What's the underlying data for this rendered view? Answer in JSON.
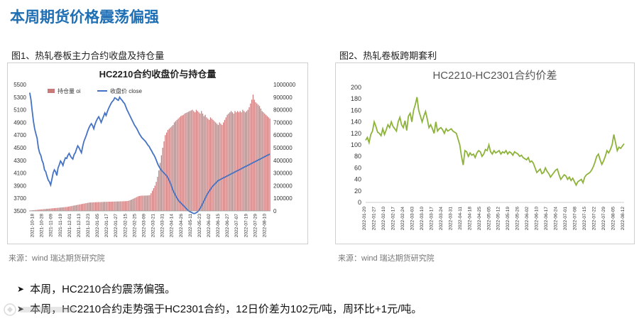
{
  "page": {
    "title": "本周期货价格震荡偏强",
    "chart1_label": "图1、热轧卷板主力合约收盘及持仓量",
    "chart2_label": "图2、热轧卷板跨期套利",
    "source1": "来源：wind   瑞达期货研究院",
    "source2": "来源：wind   瑞达期货研究院",
    "bullets": [
      "本周，HC2210合约震荡偏强。",
      "本周，HC2210合约走势强于HC2301合约，12日价差为102元/吨，周环比+1元/吨。"
    ],
    "colors": {
      "title": "#1f6fb5",
      "bar": "#c97b7b",
      "line": "#4472c4",
      "spread": "#8db33a"
    }
  },
  "chart_data": [
    {
      "type": "bar+line",
      "title": "HC2210合约收盘价与持仓量",
      "legend": [
        "持仓量 oi",
        "收盘价 close"
      ],
      "legend_position": "top-left",
      "x_ticks": [
        "2021-10-18",
        "2021-10-28",
        "2021-11-09",
        "2021-11-19",
        "2021-12-01",
        "2021-12-13",
        "2021-12-23",
        "2022-01-05",
        "2022-01-17",
        "2022-01-27",
        "2022-02-15",
        "2022-02-25",
        "2022-03-09",
        "2022-03-21",
        "2022-03-31",
        "2022-04-14",
        "2022-04-26",
        "2022-05-11",
        "2022-05-23",
        "2022-06-02",
        "2022-06-15",
        "2022-06-27",
        "2022-07-07",
        "2022-07-19",
        "2022-07-29",
        "2022-08-10"
      ],
      "y_left": {
        "range": [
          3500,
          5500
        ],
        "ticks": [
          3500,
          3700,
          3900,
          4100,
          4300,
          4500,
          4700,
          4900,
          5100,
          5300,
          5500
        ]
      },
      "y_right": {
        "range": [
          0,
          1000000
        ],
        "ticks": [
          0,
          100000,
          200000,
          300000,
          400000,
          500000,
          600000,
          700000,
          800000,
          900000,
          1000000
        ]
      },
      "grid": false,
      "series": [
        {
          "name": "持仓量 oi",
          "axis": "right",
          "values": [
            3000,
            4000,
            5000,
            6000,
            7000,
            8000,
            9000,
            10000,
            11000,
            12000,
            13000,
            14000,
            15000,
            16000,
            17000,
            18000,
            19000,
            20000,
            21000,
            22000,
            23000,
            24000,
            25000,
            26000,
            27000,
            28000,
            29000,
            30000,
            31000,
            32000,
            34000,
            36000,
            38000,
            40000,
            42000,
            44000,
            46000,
            48000,
            50000,
            52000,
            54000,
            56000,
            58000,
            60000,
            62000,
            64000,
            66000,
            67000,
            67000,
            68000,
            68000,
            69000,
            69000,
            70000,
            70000,
            70000,
            71000,
            71000,
            72000,
            72000,
            72000,
            73000,
            73000,
            73000,
            74000,
            74000,
            74000,
            75000,
            75000,
            75000,
            76000,
            76000,
            76000,
            77000,
            77000,
            78000,
            79000,
            82000,
            86000,
            90000,
            95000,
            100000,
            105000,
            110000,
            115000,
            118000,
            120000,
            121000,
            121000,
            121000,
            122000,
            122000,
            123000,
            125000,
            140000,
            160000,
            180000,
            200000,
            230000,
            270000,
            320000,
            380000,
            440000,
            500000,
            550000,
            600000,
            620000,
            640000,
            650000,
            660000,
            670000,
            680000,
            700000,
            710000,
            720000,
            730000,
            740000,
            750000,
            755000,
            760000,
            770000,
            775000,
            780000,
            785000,
            790000,
            795000,
            800000,
            790000,
            780000,
            800000,
            790000,
            780000,
            770000,
            790000,
            770000,
            750000,
            760000,
            740000,
            730000,
            720000,
            740000,
            730000,
            720000,
            710000,
            700000,
            690000,
            680000,
            700000,
            690000,
            680000,
            700000,
            720000,
            740000,
            760000,
            770000,
            780000,
            790000,
            780000,
            770000,
            790000,
            780000,
            790000,
            780000,
            790000,
            780000,
            800000,
            790000,
            780000,
            790000,
            800000,
            820000,
            850000,
            880000,
            920000,
            880000,
            860000,
            850000,
            840000,
            830000,
            810000,
            790000,
            780000,
            770000,
            760000,
            750000,
            740000,
            730000
          ]
        },
        {
          "name": "收盘价 close",
          "axis": "left",
          "values": [
            5370,
            5260,
            5080,
            4920,
            4800,
            4720,
            4650,
            4500,
            4420,
            4380,
            4300,
            4250,
            4150,
            4120,
            4050,
            3990,
            3960,
            3910,
            4000,
            4100,
            4150,
            4120,
            4060,
            4180,
            4230,
            4290,
            4260,
            4220,
            4290,
            4340,
            4330,
            4380,
            4410,
            4370,
            4340,
            4320,
            4390,
            4420,
            4480,
            4530,
            4500,
            4460,
            4420,
            4520,
            4600,
            4650,
            4700,
            4760,
            4810,
            4850,
            4880,
            4850,
            4800,
            4870,
            4920,
            4960,
            4990,
            4950,
            4900,
            4950,
            5000,
            5050,
            5010,
            5070,
            5120,
            5160,
            5200,
            5230,
            5250,
            5290,
            5280,
            5260,
            5250,
            5300,
            5270,
            5250,
            5220,
            5200,
            5150,
            5100,
            5060,
            5020,
            4980,
            4940,
            4900,
            4860,
            4830,
            4800,
            4760,
            4720,
            4690,
            4660,
            4640,
            4620,
            4600,
            4570,
            4540,
            4520,
            4480,
            4450,
            4410,
            4380,
            4340,
            4290,
            4240,
            4200,
            4170,
            4140,
            4120,
            4100,
            4080,
            4060,
            4030,
            3990,
            3950,
            3900,
            3840,
            3800,
            3760,
            3720,
            3690,
            3660,
            3640,
            3620,
            3600,
            3580,
            3560,
            3540,
            3520,
            3500,
            3490,
            3480,
            3470,
            3460,
            3460,
            3470,
            3480,
            3500,
            3530,
            3560,
            3600,
            3640,
            3680,
            3720,
            3760,
            3790,
            3820,
            3850,
            3880,
            3900,
            3920,
            3940,
            3960,
            3980,
            3990,
            4000,
            4010,
            4020,
            4030,
            4040,
            4050,
            4060,
            4070,
            4080,
            4090,
            4100,
            4110,
            4120,
            4130,
            4140,
            4150,
            4160,
            4170,
            4180,
            4190,
            4200,
            4210,
            4220,
            4230,
            4240,
            4250,
            4260,
            4270,
            4280,
            4290,
            4300,
            4310,
            4320,
            4330,
            4340,
            4350,
            4360,
            4370,
            4380,
            4390,
            4400
          ]
        }
      ]
    },
    {
      "type": "line",
      "title": "HC2210-HC2301合约价差",
      "x_ticks": [
        "2022-01-20",
        "2022-01-27",
        "2022-02-10",
        "2022-02-17",
        "2022-02-24",
        "2022-03-03",
        "2022-03-10",
        "2022-03-17",
        "2022-03-24",
        "2022-03-31",
        "2022-04-11",
        "2022-04-18",
        "2022-04-25",
        "2022-05-05",
        "2022-05-12",
        "2022-05-19",
        "2022-05-26",
        "2022-06-02",
        "2022-06-10",
        "2022-06-17",
        "2022-06-24",
        "2022-07-01",
        "2022-07-08",
        "2022-07-15",
        "2022-07-22",
        "2022-07-29",
        "2022-08-05",
        "2022-08-12"
      ],
      "y_range": [
        0,
        200
      ],
      "y_ticks": [
        0,
        20,
        40,
        60,
        80,
        100,
        120,
        140,
        160,
        180,
        200
      ],
      "grid": false,
      "series": [
        {
          "name": "",
          "values": [
            108,
            113,
            104,
            118,
            124,
            140,
            132,
            122,
            120,
            116,
            128,
            118,
            126,
            135,
            130,
            140,
            132,
            128,
            124,
            140,
            148,
            135,
            130,
            142,
            125,
            150,
            155,
            140,
            160,
            170,
            183,
            160,
            150,
            140,
            150,
            158,
            145,
            130,
            135,
            128,
            120,
            140,
            124,
            128,
            130,
            126,
            120,
            128,
            124,
            126,
            128,
            124,
            122,
            120,
            110,
            100,
            80,
            65,
            90,
            88,
            80,
            86,
            82,
            84,
            78,
            86,
            90,
            88,
            80,
            84,
            92,
            90,
            100,
            88,
            84,
            90,
            86,
            88,
            90,
            84,
            88,
            86,
            90,
            84,
            88,
            86,
            82,
            88,
            86,
            84,
            80,
            82,
            78,
            76,
            74,
            78,
            70,
            72,
            68,
            60,
            52,
            55,
            58,
            50,
            52,
            60,
            54,
            50,
            44,
            48,
            52,
            56,
            58,
            48,
            40,
            44,
            48,
            46,
            40,
            44,
            38,
            42,
            36,
            30,
            36,
            38,
            40,
            34,
            44,
            48,
            50,
            52,
            56,
            62,
            70,
            80,
            84,
            74,
            66,
            72,
            80,
            90,
            86,
            92,
            100,
            118,
            104,
            90,
            96,
            94,
            98,
            102
          ]
        }
      ]
    }
  ]
}
